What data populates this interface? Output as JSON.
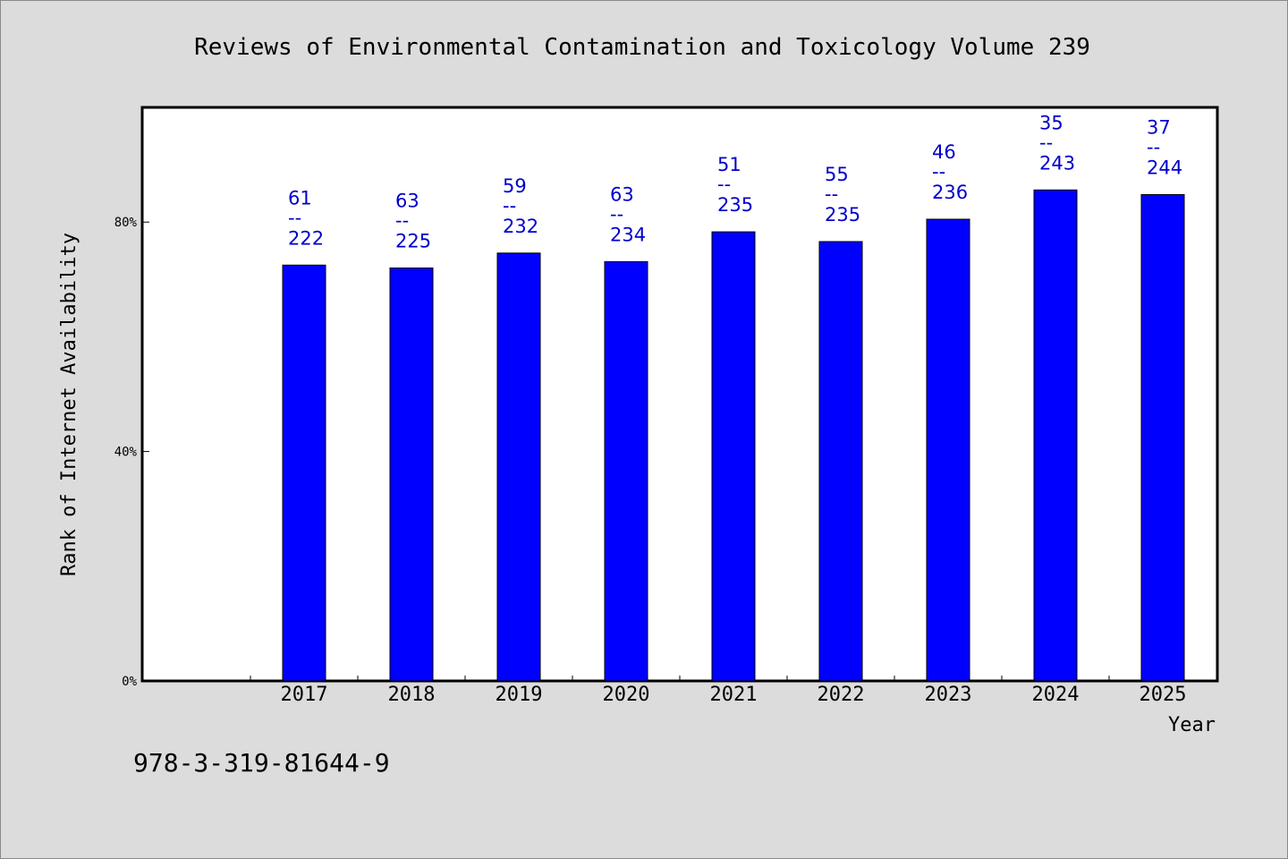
{
  "chart_data": {
    "type": "bar",
    "title": "Reviews of Environmental Contamination and Toxicology Volume 239",
    "xlabel": "Year",
    "ylabel": "Rank of Internet Availability",
    "ylim": [
      0,
      100
    ],
    "yticks": [
      {
        "value": 0,
        "label": "0%"
      },
      {
        "value": 40,
        "label": "40%"
      },
      {
        "value": 80,
        "label": "80%"
      }
    ],
    "categories": [
      "2017",
      "2018",
      "2019",
      "2020",
      "2021",
      "2022",
      "2023",
      "2024",
      "2025"
    ],
    "values": [
      72.5,
      72.0,
      74.6,
      73.1,
      78.3,
      76.6,
      80.5,
      85.6,
      84.8
    ],
    "annotations": [
      {
        "rank": "61",
        "sep": "--",
        "total": "222"
      },
      {
        "rank": "63",
        "sep": "--",
        "total": "225"
      },
      {
        "rank": "59",
        "sep": "--",
        "total": "232"
      },
      {
        "rank": "63",
        "sep": "--",
        "total": "234"
      },
      {
        "rank": "51",
        "sep": "--",
        "total": "235"
      },
      {
        "rank": "55",
        "sep": "--",
        "total": "235"
      },
      {
        "rank": "46",
        "sep": "--",
        "total": "236"
      },
      {
        "rank": "35",
        "sep": "--",
        "total": "243"
      },
      {
        "rank": "37",
        "sep": "--",
        "total": "244"
      }
    ],
    "bar_color": "#0000ff",
    "label_color": "#0000cc",
    "plot_background": "#ffffff",
    "page_background": "#dcdcdc",
    "grid": false,
    "legend": "none"
  },
  "footer": {
    "isbn": "978-3-319-81644-9"
  }
}
